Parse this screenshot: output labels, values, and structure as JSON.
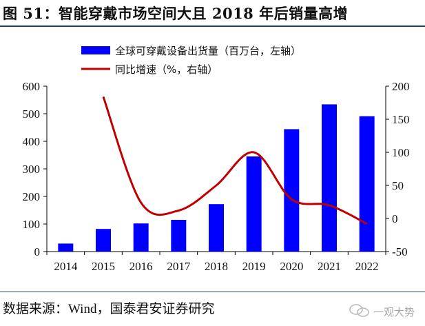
{
  "header": {
    "title": "图 51：智能穿戴市场空间大且 2018 年后销量高增"
  },
  "footer": {
    "source": "数据来源：Wind，国泰君安证券研究",
    "watermark": "一观大势"
  },
  "chart_data": {
    "type": "bar",
    "categories": [
      "2014",
      "2015",
      "2016",
      "2017",
      "2018",
      "2019",
      "2020",
      "2021",
      "2022"
    ],
    "series": [
      {
        "name": "全球可穿戴设备出货量（百万台，左轴）",
        "type": "bar",
        "axis": "left",
        "color": "#0000ff",
        "values": [
          29,
          82,
          102,
          115,
          172,
          345,
          444,
          534,
          491
        ]
      },
      {
        "name": "同比增速（%，右轴）",
        "type": "line",
        "axis": "right",
        "color": "#c00000",
        "values": [
          null,
          184,
          24,
          12,
          50,
          100,
          29,
          20,
          -8
        ]
      }
    ],
    "y_left": {
      "ylim": [
        0,
        600
      ],
      "ticks": [
        "0",
        "100",
        "200",
        "300",
        "400",
        "500",
        "600"
      ]
    },
    "y_right": {
      "ylim": [
        -50,
        200
      ],
      "ticks": [
        "-50",
        "0",
        "50",
        "100",
        "150",
        "200"
      ]
    },
    "legend_position": "top-center",
    "grid": false
  }
}
